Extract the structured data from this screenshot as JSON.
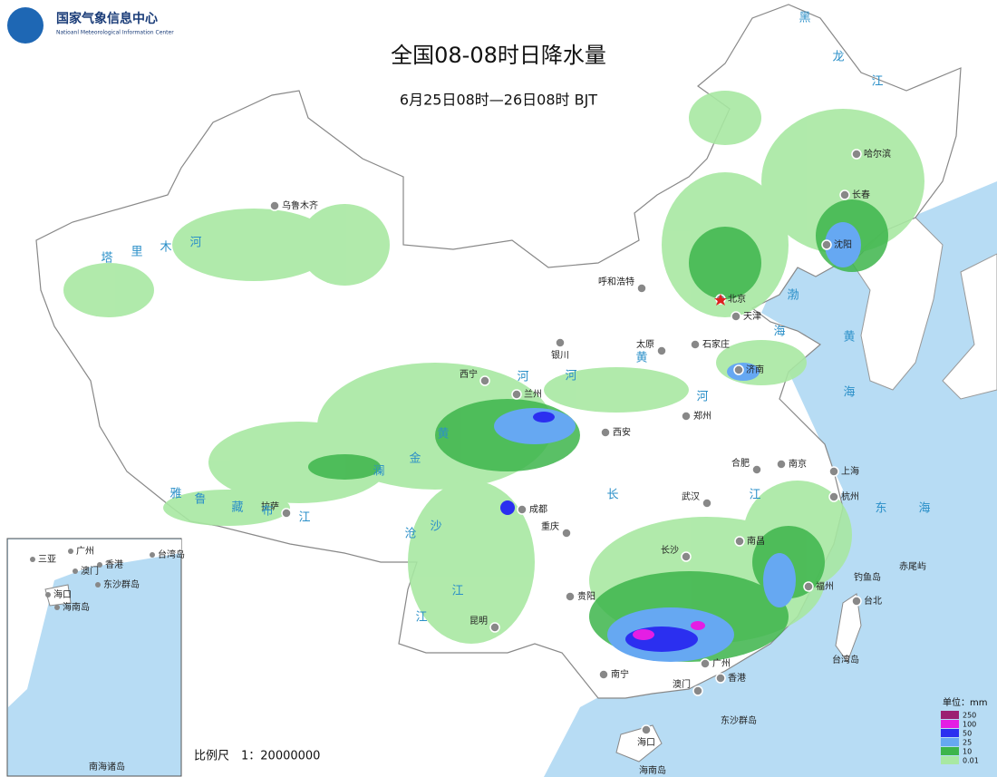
{
  "header": {
    "org_cn": "国家气象信息中心",
    "org_en": "Natioanl Meteorological Information Center",
    "title": "全国08-08时日降水量",
    "subtitle": "6月25日08时—26日08时 BJT"
  },
  "cities": [
    "乌鲁木齐",
    "哈尔滨",
    "长春",
    "沈阳",
    "呼和浩特",
    "北京",
    "天津",
    "石家庄",
    "太原",
    "银川",
    "济南",
    "西宁",
    "兰州",
    "郑州",
    "西安",
    "合肥",
    "南京",
    "上海",
    "成都",
    "武汉",
    "杭州",
    "重庆",
    "长沙",
    "南昌",
    "拉萨",
    "贵阳",
    "福州",
    "台北",
    "昆明",
    "南宁",
    "广州",
    "香港",
    "澳门",
    "海口"
  ],
  "map_labels": [
    "塔",
    "里",
    "木",
    "河",
    "黑",
    "龙",
    "江",
    "渤",
    "海",
    "黄",
    "海",
    "东",
    "海",
    "河",
    "黄",
    "河",
    "黄",
    "河",
    "长",
    "江",
    "金",
    "沙",
    "江",
    "澜",
    "沧",
    "江",
    "雅",
    "鲁",
    "藏",
    "布",
    "江",
    "台湾岛",
    "钓鱼岛",
    "赤尾屿",
    "东沙群岛",
    "海南岛"
  ],
  "inset": {
    "title": "南海诸岛",
    "labels": [
      "三亚",
      "广州",
      "香港",
      "澳门",
      "海口",
      "海南岛",
      "东沙群岛",
      "台湾岛"
    ]
  },
  "scale": {
    "label": "比例尺",
    "ratio": "1：20000000"
  },
  "legend": {
    "unit": "单位：mm",
    "levels": [
      {
        "value": 250,
        "color": "#9c1f72"
      },
      {
        "value": 100,
        "color": "#e41ee4"
      },
      {
        "value": 50,
        "color": "#2b2ff0"
      },
      {
        "value": 25,
        "color": "#66a8f2"
      },
      {
        "value": 10,
        "color": "#3db54b"
      },
      {
        "value": 0.01,
        "color": "#a8e8a2"
      }
    ]
  }
}
